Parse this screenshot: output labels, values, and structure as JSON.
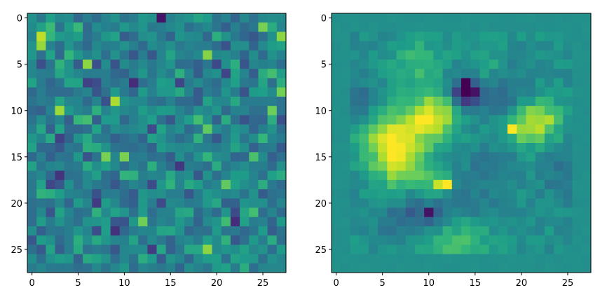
{
  "chart_data": [
    {
      "type": "heatmap",
      "title": "",
      "xlabel": "",
      "ylabel": "",
      "rows": 28,
      "cols": 28,
      "xlim": [
        -0.5,
        27.5
      ],
      "ylim": [
        27.5,
        -0.5
      ],
      "xticks": [
        0,
        5,
        10,
        15,
        20,
        25
      ],
      "xtick_labels": [
        "0",
        "5",
        "10",
        "15",
        "20",
        "25"
      ],
      "yticks": [
        0,
        5,
        10,
        15,
        20,
        25
      ],
      "ytick_labels": [
        "0",
        "5",
        "10",
        "15",
        "20",
        "25"
      ],
      "colormap": "viridis",
      "value_range": [
        0,
        1
      ],
      "grid": false,
      "random_seed": 7,
      "values": []
    },
    {
      "type": "heatmap",
      "title": "",
      "xlabel": "",
      "ylabel": "",
      "rows": 28,
      "cols": 28,
      "xlim": [
        -0.5,
        27.5
      ],
      "ylim": [
        27.5,
        -0.5
      ],
      "xticks": [
        0,
        5,
        10,
        15,
        20,
        25
      ],
      "xtick_labels": [
        "0",
        "5",
        "10",
        "15",
        "20",
        "25"
      ],
      "yticks": [
        0,
        5,
        10,
        15,
        20,
        25
      ],
      "ytick_labels": [
        "0",
        "5",
        "10",
        "15",
        "20",
        "25"
      ],
      "colormap": "viridis",
      "value_range": [
        0,
        1
      ],
      "grid": false,
      "background_value": 0.5,
      "notable_cells": [
        {
          "row": 7,
          "col": 14,
          "value": 0.0
        },
        {
          "row": 8,
          "col": 14,
          "value": 0.0
        },
        {
          "row": 8,
          "col": 15,
          "value": 0.05
        },
        {
          "row": 21,
          "col": 10,
          "value": 0.05
        },
        {
          "row": 12,
          "col": 19,
          "value": 1.0
        },
        {
          "row": 18,
          "col": 12,
          "value": 1.0
        },
        {
          "row": 18,
          "col": 11,
          "value": 0.92
        },
        {
          "row": 12,
          "col": 6,
          "value": 0.95
        },
        {
          "row": 13,
          "col": 5,
          "value": 0.95
        },
        {
          "row": 10,
          "col": 11,
          "value": 0.85
        },
        {
          "row": 11,
          "col": 23,
          "value": 0.88
        }
      ],
      "values": []
    }
  ]
}
